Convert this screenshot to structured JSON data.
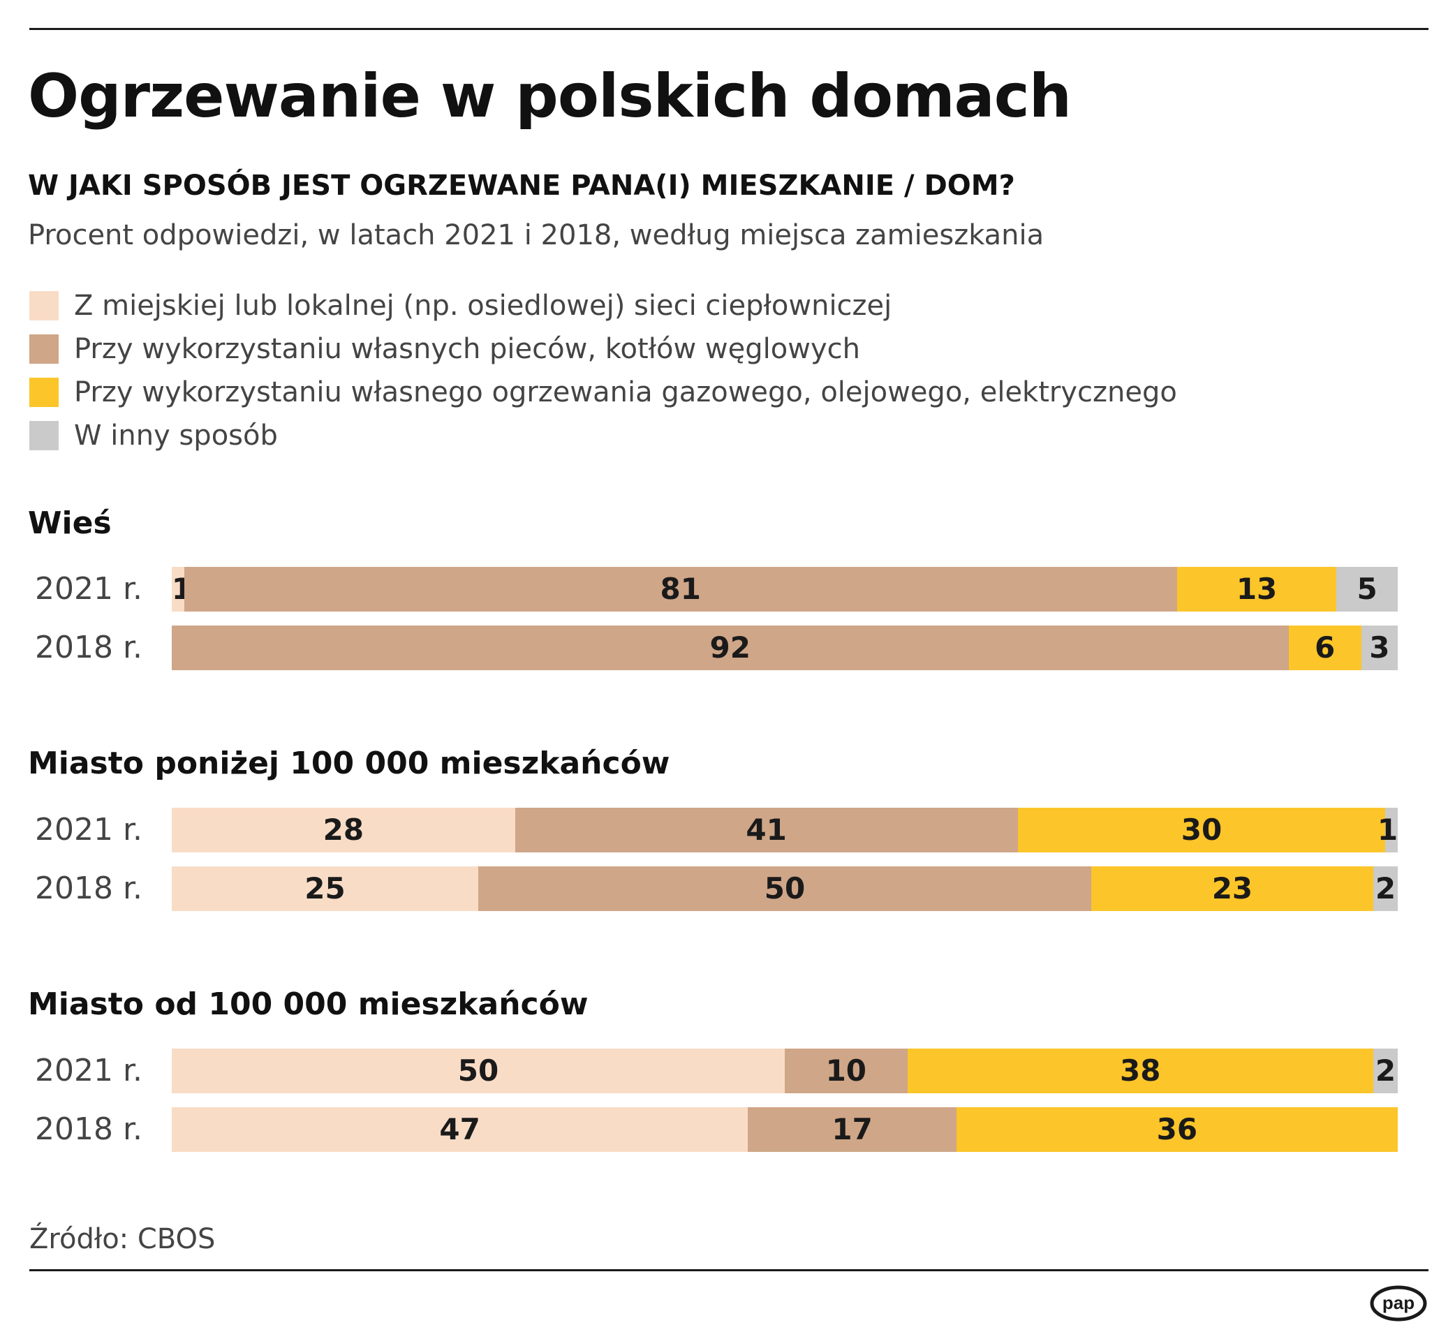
{
  "title": "Ogrzewanie w polskich domach",
  "subtitle": "W JAKI SPOSÓB JEST OGRZEWANE PANA(I) MIESZKANIE / DOM?",
  "description": "Procent odpowiedzi, w latach 2021 i 2018, według miejsca zamieszkania",
  "source": "Źródło: CBOS",
  "logo_text": "pap",
  "legend": [
    {
      "label": "Z miejskiej lub lokalnej (np. osiedlowej) sieci ciepłowniczej",
      "color": "#f9dcc6"
    },
    {
      "label": "Przy wykorzystaniu własnych pieców, kotłów węglowych",
      "color": "#cfa688"
    },
    {
      "label": "Przy wykorzystaniu własnego ogrzewania gazowego, olejowego, elektrycznego",
      "color": "#fcc52a"
    },
    {
      "label": "W inny sposób",
      "color": "#cacaca"
    }
  ],
  "chart_data": {
    "type": "bar",
    "orientation": "horizontal-stacked-100",
    "title": "Ogrzewanie w polskich domach",
    "subtitle": "W JAKI SPOSÓB JEST OGRZEWANE PANA(I) MIESZKANIE / DOM?",
    "ylabel": "Procent odpowiedzi",
    "series_names": [
      "Z miejskiej lub lokalnej (np. osiedlowej) sieci ciepłowniczej",
      "Przy wykorzystaniu własnych pieców, kotłów węglowych",
      "Przy wykorzystaniu własnego ogrzewania gazowego, olejowego, elektrycznego",
      "W inny sposób"
    ],
    "groups": [
      {
        "name": "Wieś",
        "rows": [
          {
            "label": "2021 r.",
            "values": [
              1,
              81,
              13,
              5
            ]
          },
          {
            "label": "2018 r.",
            "values": [
              0,
              92,
              6,
              3
            ]
          }
        ]
      },
      {
        "name": "Miasto poniżej 100 000 mieszkańców",
        "rows": [
          {
            "label": "2021 r.",
            "values": [
              28,
              41,
              30,
              1
            ]
          },
          {
            "label": "2018 r.",
            "values": [
              25,
              50,
              23,
              2
            ]
          }
        ]
      },
      {
        "name": "Miasto od 100 000 mieszkańców",
        "rows": [
          {
            "label": "2021 r.",
            "values": [
              50,
              10,
              38,
              2
            ]
          },
          {
            "label": "2018 r.",
            "values": [
              47,
              17,
              36,
              0
            ]
          }
        ]
      }
    ]
  }
}
